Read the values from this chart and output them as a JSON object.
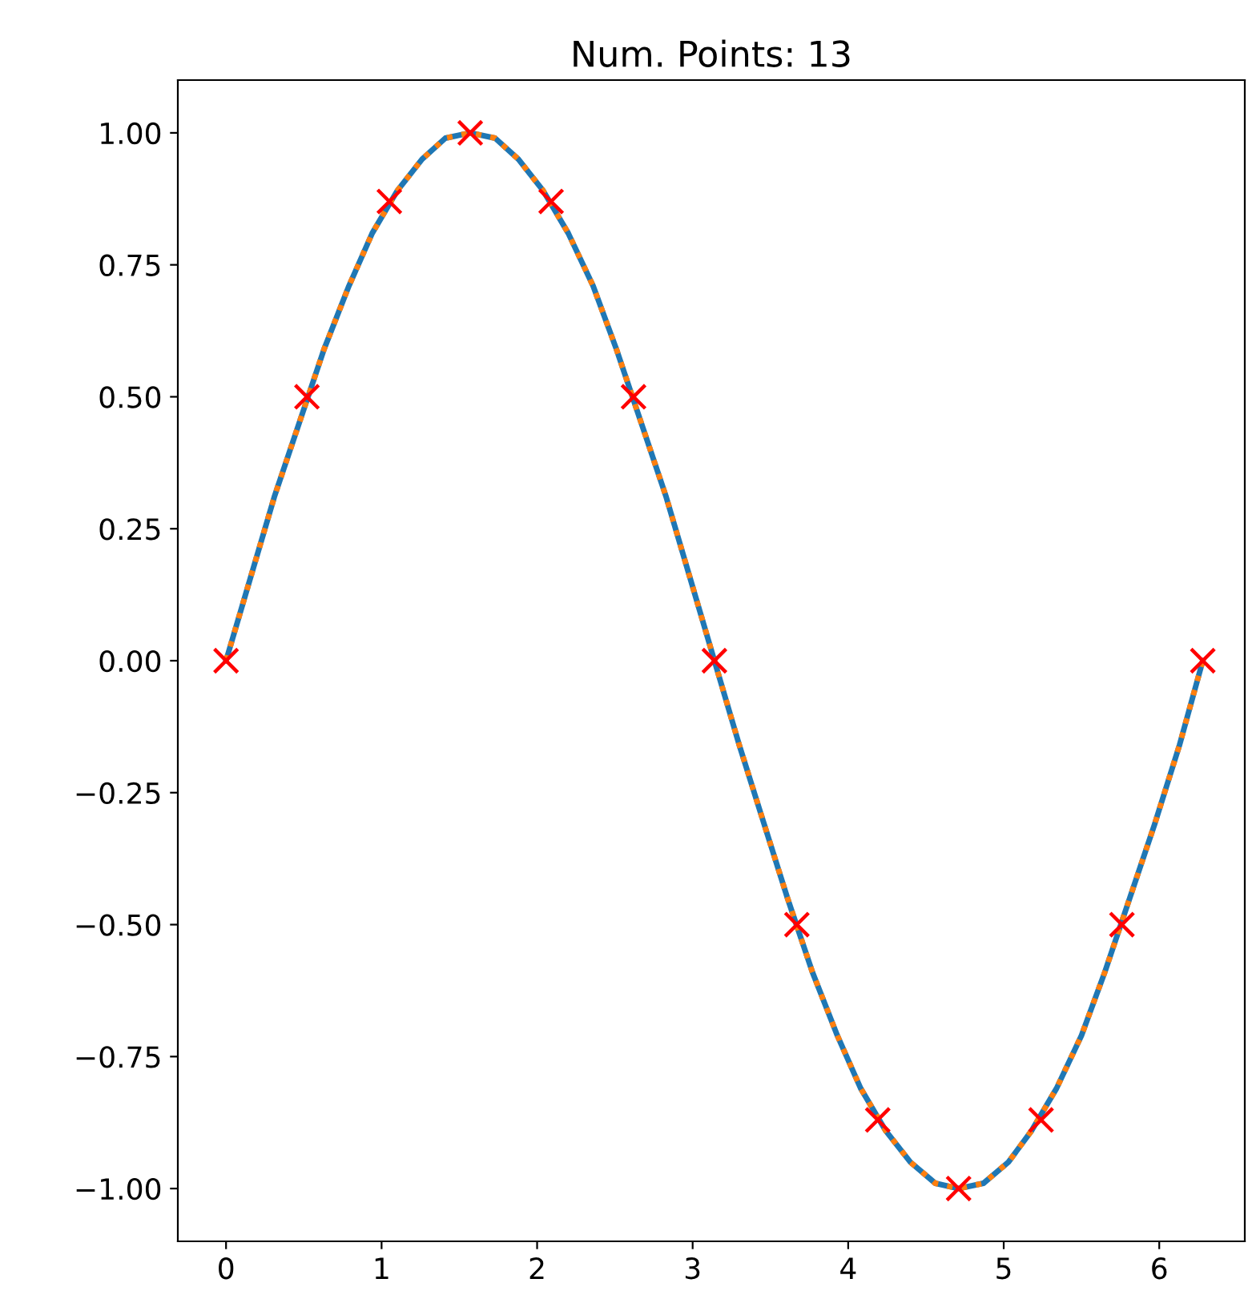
{
  "chart_data": {
    "type": "line",
    "title": "Num. Points: 13",
    "xlim": [
      -0.31,
      6.55
    ],
    "xticks": [
      0,
      1,
      2,
      3,
      4,
      5,
      6
    ],
    "ylim": [
      -1.1,
      1.1
    ],
    "yticks": [
      {
        "value": -1,
        "label": "−1.00"
      },
      {
        "value": -0.75,
        "label": "−0.75"
      },
      {
        "value": -0.5,
        "label": "−0.50"
      },
      {
        "value": -0.25,
        "label": "−0.25"
      },
      {
        "value": 0,
        "label": "0.00"
      },
      {
        "value": 0.25,
        "label": "0.25"
      },
      {
        "value": 0.5,
        "label": "0.50"
      },
      {
        "value": 0.75,
        "label": "0.75"
      },
      {
        "value": 1,
        "label": "1.00"
      }
    ],
    "grid": false,
    "series": [
      {
        "color": "#1f77b4",
        "line_style": "solid",
        "x": [
          0,
          0.16,
          0.31,
          0.47,
          0.63,
          0.79,
          0.94,
          1.1,
          1.26,
          1.41,
          1.57,
          1.73,
          1.88,
          2.04,
          2.2,
          2.36,
          2.51,
          2.67,
          2.83,
          2.98,
          3.14,
          3.3,
          3.46,
          3.61,
          3.77,
          3.93,
          4.08,
          4.24,
          4.4,
          4.56,
          4.71,
          4.87,
          5.03,
          5.18,
          5.34,
          5.5,
          5.65,
          5.81,
          5.97,
          6.13,
          6.28
        ],
        "values": [
          0,
          0.16,
          0.31,
          0.45,
          0.59,
          0.71,
          0.81,
          0.89,
          0.95,
          0.99,
          1.0,
          0.99,
          0.95,
          0.89,
          0.81,
          0.71,
          0.59,
          0.45,
          0.31,
          0.16,
          0,
          -0.16,
          -0.31,
          -0.45,
          -0.59,
          -0.71,
          -0.81,
          -0.89,
          -0.95,
          -0.99,
          -1.0,
          -0.99,
          -0.95,
          -0.89,
          -0.81,
          -0.71,
          -0.59,
          -0.45,
          -0.31,
          -0.16,
          0
        ]
      },
      {
        "color": "#ff7f0e",
        "line_style": "dotted",
        "x": [
          0,
          0.16,
          0.31,
          0.47,
          0.63,
          0.79,
          0.94,
          1.1,
          1.26,
          1.41,
          1.57,
          1.73,
          1.88,
          2.04,
          2.2,
          2.36,
          2.51,
          2.67,
          2.83,
          2.98,
          3.14,
          3.3,
          3.46,
          3.61,
          3.77,
          3.93,
          4.08,
          4.24,
          4.4,
          4.56,
          4.71,
          4.87,
          5.03,
          5.18,
          5.34,
          5.5,
          5.65,
          5.81,
          5.97,
          6.13,
          6.28
        ],
        "values": [
          0,
          0.16,
          0.31,
          0.45,
          0.59,
          0.71,
          0.81,
          0.89,
          0.95,
          0.99,
          1.0,
          0.99,
          0.95,
          0.89,
          0.81,
          0.71,
          0.59,
          0.45,
          0.31,
          0.16,
          0,
          -0.16,
          -0.31,
          -0.45,
          -0.59,
          -0.71,
          -0.81,
          -0.89,
          -0.95,
          -0.99,
          -1.0,
          -0.99,
          -0.95,
          -0.89,
          -0.81,
          -0.71,
          -0.59,
          -0.45,
          -0.31,
          -0.16,
          0
        ]
      },
      {
        "type": "scatter",
        "color": "#ff0000",
        "marker": "cross",
        "x": [
          0,
          0.52,
          1.05,
          1.57,
          2.09,
          2.62,
          3.14,
          3.67,
          4.19,
          4.71,
          5.24,
          5.76,
          6.28
        ],
        "values": [
          0,
          0.5,
          0.87,
          1,
          0.87,
          0.5,
          0,
          -0.5,
          -0.87,
          -1,
          -0.87,
          -0.5,
          0
        ]
      }
    ]
  }
}
